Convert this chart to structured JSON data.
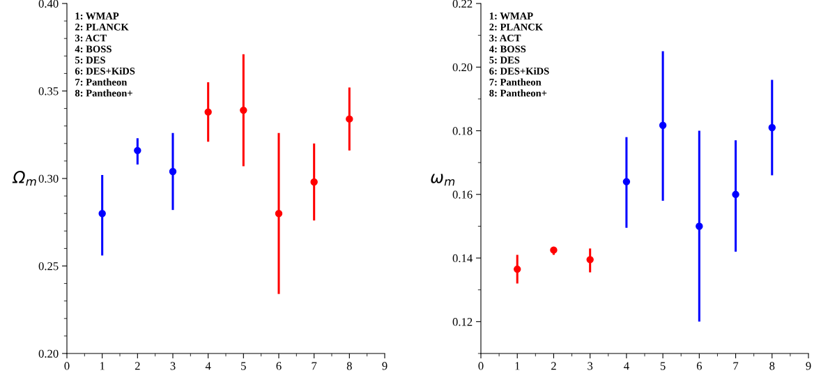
{
  "chart_data": [
    {
      "type": "scatter",
      "ylabel": "Ω$_{m}$",
      "xlim": [
        0,
        9
      ],
      "xticks": [
        0,
        1,
        2,
        3,
        4,
        5,
        6,
        7,
        8,
        9
      ],
      "ylim": [
        0.2,
        0.4
      ],
      "yticks": [
        {
          "value": 0.2,
          "label": "0.20"
        },
        0.25,
        {
          "value": 0.3,
          "label": "0.30"
        },
        0.35,
        {
          "value": 0.4,
          "label": "0.40"
        }
      ],
      "marker": "circle",
      "grid": false,
      "legend": false,
      "annotations": [
        "1: WMAP",
        "2: PLANCK",
        "3: ACT",
        "4: BOSS",
        "5: DES",
        "6: DES+KiDS",
        "7: Pantheon",
        "8: Pantheon+"
      ],
      "series": [
        {
          "color": "#0000ff",
          "x": [
            1,
            2,
            3
          ],
          "values": [
            0.28,
            0.316,
            0.304
          ],
          "errors": [
            [
              0.256,
              0.302
            ],
            [
              0.308,
              0.323
            ],
            [
              0.282,
              0.326
            ]
          ]
        },
        {
          "color": "#ff0000",
          "x": [
            4,
            5,
            6,
            7,
            8
          ],
          "values": [
            0.338,
            0.339,
            0.28,
            0.298,
            0.334
          ],
          "errors": [
            [
              0.321,
              0.355
            ],
            [
              0.307,
              0.371
            ],
            [
              0.234,
              0.326
            ],
            [
              0.276,
              0.32
            ],
            [
              0.316,
              0.352
            ]
          ]
        }
      ]
    },
    {
      "type": "scatter",
      "ylabel": "ω$_{m}$",
      "xlim": [
        0,
        9
      ],
      "xticks": [
        0,
        1,
        2,
        3,
        4,
        5,
        6,
        7,
        8,
        9
      ],
      "ylim": [
        0.11,
        0.22
      ],
      "yticks": [
        0.12,
        0.14,
        0.16,
        0.18,
        {
          "value": 0.2,
          "label": "0.20"
        },
        0.22
      ],
      "marker": "circle",
      "grid": false,
      "legend": false,
      "annotations": [
        "1: WMAP",
        "2: PLANCK",
        "3: ACT",
        "4: BOSS",
        "5: DES",
        "6: DES+KiDS",
        "7: Pantheon",
        "8: Pantheon+"
      ],
      "series": [
        {
          "color": "#ff0000",
          "x": [
            1,
            2,
            3
          ],
          "values": [
            0.1365,
            0.1425,
            0.1395
          ],
          "errors": [
            [
              0.132,
              0.141
            ],
            [
              0.141,
              0.1435
            ],
            [
              0.1355,
              0.143
            ]
          ]
        },
        {
          "color": "#0000ff",
          "x": [
            4,
            5,
            6,
            7,
            8
          ],
          "values": [
            0.164,
            0.1817,
            0.15,
            0.16,
            0.181
          ],
          "errors": [
            [
              0.1495,
              0.178
            ],
            [
              0.158,
              0.205
            ],
            [
              0.12,
              0.18
            ],
            [
              0.142,
              0.177
            ],
            [
              0.166,
              0.196
            ]
          ]
        }
      ]
    }
  ]
}
